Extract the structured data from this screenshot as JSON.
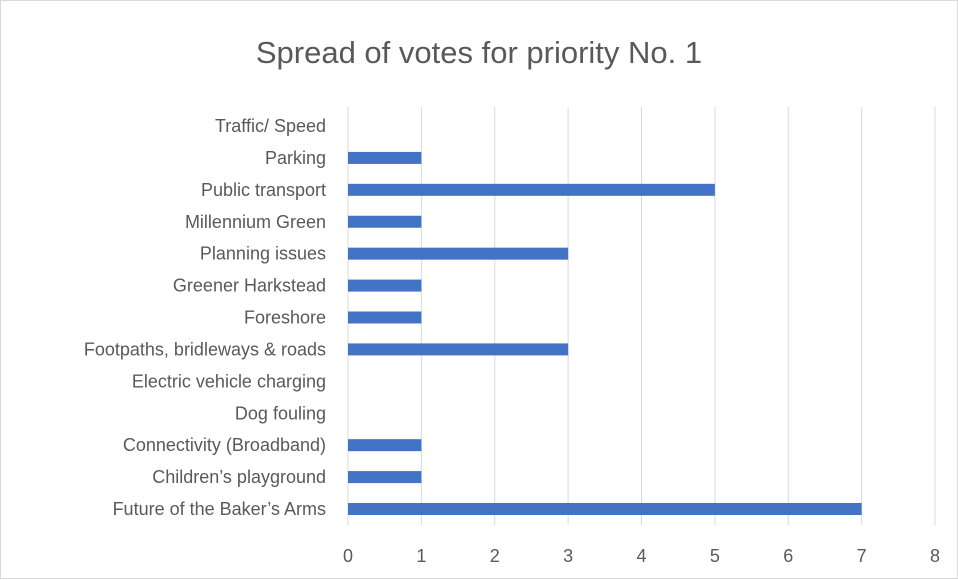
{
  "chart_data": {
    "type": "bar",
    "orientation": "horizontal",
    "title": "Spread of votes for priority No. 1",
    "xlabel": "",
    "ylabel": "",
    "xlim": [
      0,
      8
    ],
    "x_ticks": [
      "0",
      "1",
      "2",
      "3",
      "4",
      "5",
      "6",
      "7",
      "8"
    ],
    "grid": true,
    "legend": "none",
    "bar_color": "#4472c4",
    "categories": [
      "Future of the Baker’s Arms",
      "Children’s playground",
      "Connectivity (Broadband)",
      "Dog fouling",
      "Electric vehicle charging",
      "Footpaths, bridleways & roads",
      "Foreshore",
      "Greener Harkstead",
      "Planning issues",
      "Millennium Green",
      "Public transport",
      "Parking",
      "Traffic/ Speed"
    ],
    "values": [
      7,
      1,
      1,
      0,
      0,
      3,
      1,
      1,
      3,
      1,
      5,
      1,
      0
    ]
  }
}
